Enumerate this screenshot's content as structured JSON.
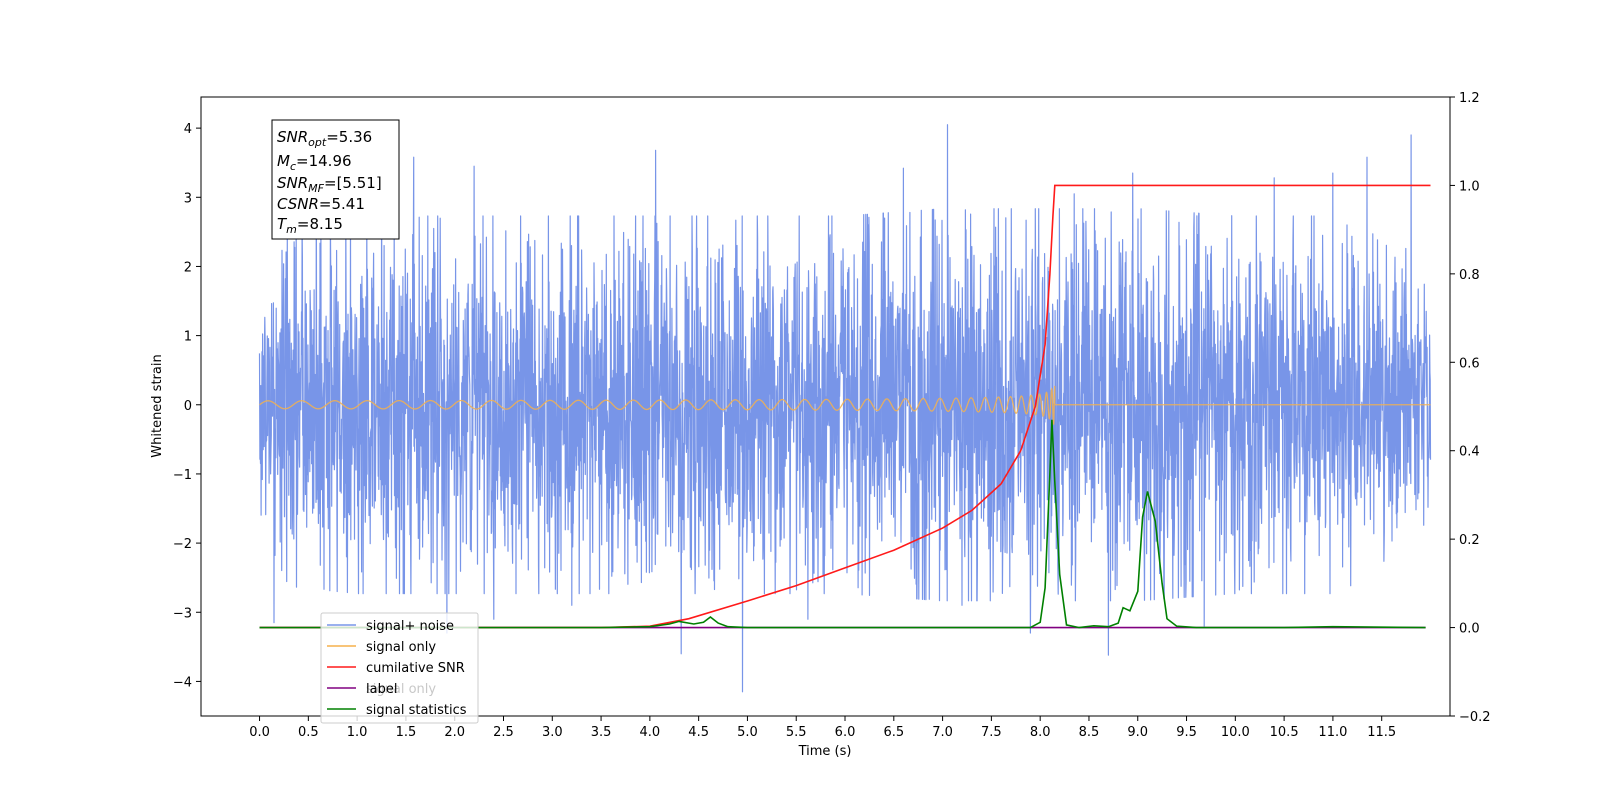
{
  "chart_data": {
    "type": "line",
    "xlabel": "Time (s)",
    "ylabel": "Whitened strain",
    "x_range": [
      -0.6,
      12.2
    ],
    "y_left_range": [
      -4.5,
      4.45
    ],
    "y_right_range": [
      -0.2,
      1.2
    ],
    "x_ticks": [
      "0.0",
      "0.5",
      "1.0",
      "1.5",
      "2.0",
      "2.5",
      "3.0",
      "3.5",
      "4.0",
      "4.5",
      "5.0",
      "5.5",
      "6.0",
      "6.5",
      "7.0",
      "7.5",
      "8.0",
      "8.5",
      "9.0",
      "9.5",
      "10.0",
      "10.5",
      "11.0",
      "11.5"
    ],
    "y_left_ticks": [
      "−4",
      "−3",
      "−2",
      "−1",
      "0",
      "1",
      "2",
      "3",
      "4"
    ],
    "y_right_ticks": [
      "−0.2",
      "0.0",
      "0.2",
      "0.4",
      "0.6",
      "0.8",
      "1.0",
      "1.2"
    ],
    "grid": false,
    "legend_position": "lower-left",
    "annotation": {
      "snr_opt": {
        "main": "SNR",
        "sub": "opt",
        "value": "=5.36"
      },
      "mc": {
        "main": "M",
        "sub": "c",
        "value": "=14.96"
      },
      "snr_mf": {
        "main": "SNR",
        "sub": "MF",
        "value": "=[5.51]"
      },
      "csnr": {
        "main": "CSNR",
        "value": "=5.41"
      },
      "tm": {
        "main": "T",
        "sub": "m",
        "value": "=8.15"
      }
    },
    "series": [
      {
        "name": "signal+ noise",
        "color": "#7895e8",
        "axis": "left",
        "x_start": 0.0,
        "x_end": 12.0,
        "envelope": [
          [
            0.0,
            1.6
          ],
          [
            0.3,
            2.5
          ],
          [
            1.0,
            2.6
          ],
          [
            2.0,
            2.6
          ],
          [
            3.0,
            2.6
          ],
          [
            4.0,
            2.6
          ],
          [
            5.0,
            2.6
          ],
          [
            6.0,
            2.6
          ],
          [
            7.0,
            2.7
          ],
          [
            8.0,
            2.7
          ],
          [
            9.0,
            2.7
          ],
          [
            10.0,
            2.6
          ],
          [
            11.0,
            2.6
          ],
          [
            12.0,
            2.0
          ]
        ],
        "spikes": [
          [
            0.15,
            -3.15
          ],
          [
            0.58,
            3.48
          ],
          [
            1.1,
            2.9
          ],
          [
            1.25,
            3.55
          ],
          [
            1.58,
            3.58
          ],
          [
            1.92,
            -3.3
          ],
          [
            2.2,
            3.45
          ],
          [
            2.4,
            -3.1
          ],
          [
            3.2,
            -2.9
          ],
          [
            4.06,
            3.68
          ],
          [
            4.32,
            -3.6
          ],
          [
            4.95,
            -4.15
          ],
          [
            5.62,
            -3.1
          ],
          [
            6.6,
            3.42
          ],
          [
            7.05,
            4.05
          ],
          [
            7.2,
            -2.9
          ],
          [
            7.9,
            -3.3
          ],
          [
            8.35,
            3.05
          ],
          [
            8.7,
            -3.62
          ],
          [
            8.95,
            3.35
          ],
          [
            9.68,
            -3.2
          ],
          [
            10.4,
            3.28
          ],
          [
            11.0,
            3.35
          ],
          [
            11.35,
            3.58
          ],
          [
            11.8,
            3.9
          ]
        ]
      },
      {
        "name": "signal only",
        "color": "#f5b14c",
        "axis": "left",
        "chirp": {
          "t_start": 0.0,
          "t_merger": 8.15,
          "peak_amplitude": 0.95,
          "amp_at_6s": 0.08,
          "t_end": 12.0
        }
      },
      {
        "name": "cumilative SNR",
        "color": "#ff1a1a",
        "axis": "right",
        "points": [
          [
            0.0,
            0.0
          ],
          [
            3.5,
            0.0
          ],
          [
            4.0,
            0.003
          ],
          [
            4.4,
            0.02
          ],
          [
            5.0,
            0.06
          ],
          [
            5.5,
            0.095
          ],
          [
            6.0,
            0.135
          ],
          [
            6.5,
            0.175
          ],
          [
            7.0,
            0.225
          ],
          [
            7.3,
            0.265
          ],
          [
            7.6,
            0.325
          ],
          [
            7.8,
            0.4
          ],
          [
            7.95,
            0.5
          ],
          [
            8.05,
            0.64
          ],
          [
            8.1,
            0.8
          ],
          [
            8.13,
            0.93
          ],
          [
            8.15,
            1.0
          ],
          [
            12.0,
            1.0
          ]
        ]
      },
      {
        "name": "label",
        "color": "#800080",
        "axis": "right",
        "points": [
          [
            0.0,
            0.0
          ],
          [
            11.95,
            0.0
          ]
        ]
      },
      {
        "name": "signal statistics",
        "color": "#008000",
        "axis": "right",
        "points": [
          [
            0.0,
            0.0
          ],
          [
            3.5,
            0.0
          ],
          [
            4.0,
            0.002
          ],
          [
            4.2,
            0.008
          ],
          [
            4.3,
            0.014
          ],
          [
            4.45,
            0.008
          ],
          [
            4.55,
            0.012
          ],
          [
            4.62,
            0.024
          ],
          [
            4.7,
            0.01
          ],
          [
            4.8,
            0.002
          ],
          [
            5.0,
            0.0
          ],
          [
            7.9,
            0.0
          ],
          [
            8.0,
            0.012
          ],
          [
            8.05,
            0.09
          ],
          [
            8.1,
            0.35
          ],
          [
            8.12,
            0.47
          ],
          [
            8.15,
            0.33
          ],
          [
            8.2,
            0.12
          ],
          [
            8.27,
            0.006
          ],
          [
            8.4,
            0.0
          ],
          [
            8.55,
            0.004
          ],
          [
            8.7,
            0.002
          ],
          [
            8.8,
            0.01
          ],
          [
            8.85,
            0.045
          ],
          [
            8.92,
            0.038
          ],
          [
            9.0,
            0.082
          ],
          [
            9.05,
            0.25
          ],
          [
            9.1,
            0.308
          ],
          [
            9.18,
            0.24
          ],
          [
            9.25,
            0.1
          ],
          [
            9.3,
            0.02
          ],
          [
            9.4,
            0.003
          ],
          [
            9.6,
            0.0
          ],
          [
            10.5,
            0.0
          ],
          [
            11.0,
            0.002
          ],
          [
            11.95,
            0.0
          ]
        ]
      }
    ]
  },
  "legend": {
    "items": [
      {
        "label": "signal+ noise",
        "color": "#7895e8"
      },
      {
        "label": "signal only",
        "color": "#f5b14c"
      },
      {
        "label": "cumilative SNR",
        "color": "#ff1a1a"
      },
      {
        "label": "label",
        "color": "#800080"
      },
      {
        "label": "signal statistics",
        "color": "#008000"
      }
    ],
    "hidden_behind_text": "signal only"
  }
}
